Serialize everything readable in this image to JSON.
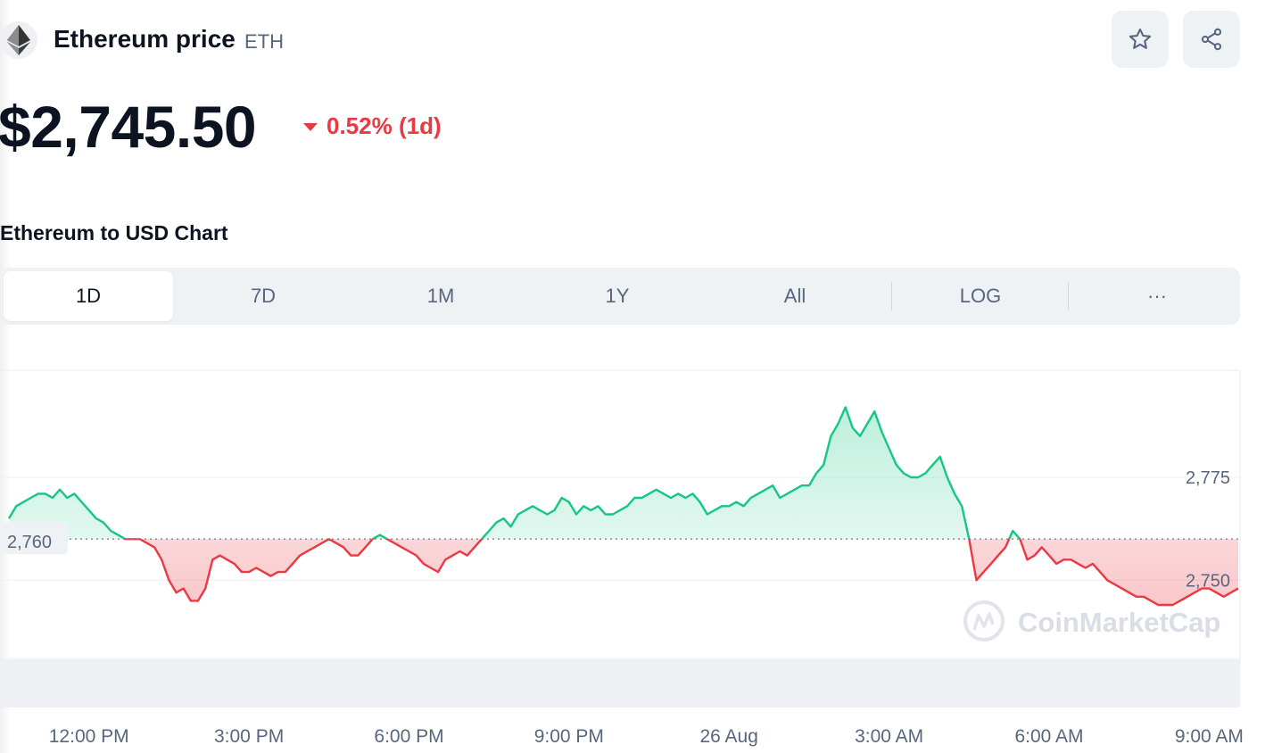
{
  "header": {
    "coin_name": "Ethereum price",
    "symbol": "ETH",
    "logo_icon": "ethereum-icon",
    "star_icon": "star-icon",
    "share_icon": "share-icon"
  },
  "price": {
    "value": "$2,745.50",
    "change": "0.52% (1d)",
    "direction": "down",
    "change_color": "#ea3943"
  },
  "section_title": "Ethereum to USD Chart",
  "tabs": [
    {
      "label": "1D",
      "active": true
    },
    {
      "label": "7D",
      "active": false
    },
    {
      "label": "1M",
      "active": false
    },
    {
      "label": "1Y",
      "active": false
    },
    {
      "label": "All",
      "active": false
    },
    {
      "label": "LOG",
      "active": false
    },
    {
      "label": "···",
      "active": false
    }
  ],
  "chart_data": {
    "type": "area",
    "baseline": 2760,
    "baseline_label": "2,760",
    "y_ticks": [
      {
        "value": 2775,
        "label": "2,775"
      },
      {
        "value": 2750,
        "label": "2,750"
      }
    ],
    "x_ticks": [
      {
        "index": 11,
        "label": "12:00 PM"
      },
      {
        "index": 33,
        "label": "3:00 PM"
      },
      {
        "index": 55,
        "label": "6:00 PM"
      },
      {
        "index": 77,
        "label": "9:00 PM"
      },
      {
        "index": 99,
        "label": "26 Aug"
      },
      {
        "index": 121,
        "label": "3:00 AM"
      },
      {
        "index": 143,
        "label": "6:00 AM"
      },
      {
        "index": 165,
        "label": "9:00 AM"
      }
    ],
    "ylim": [
      2731,
      2801
    ],
    "up_color": "#16c784",
    "down_color": "#ea3943",
    "watermark": "CoinMarketCap",
    "prices": [
      2765,
      2768,
      2769,
      2770,
      2771,
      2771,
      2770,
      2772,
      2770,
      2771,
      2769,
      2767,
      2765,
      2764,
      2762,
      2761,
      2760,
      2760,
      2760,
      2759,
      2758,
      2755,
      2750,
      2747,
      2748,
      2745,
      2745,
      2748,
      2755,
      2756,
      2755,
      2754,
      2752,
      2752,
      2753,
      2752,
      2751,
      2752,
      2752,
      2754,
      2756,
      2757,
      2758,
      2759,
      2760,
      2759,
      2758,
      2756,
      2756,
      2758,
      2760,
      2761,
      2760,
      2759,
      2758,
      2757,
      2756,
      2754,
      2753,
      2752,
      2755,
      2756,
      2757,
      2756,
      2758,
      2760,
      2762,
      2764,
      2765,
      2763,
      2766,
      2767,
      2768,
      2767,
      2766,
      2767,
      2770,
      2769,
      2766,
      2768,
      2767,
      2768,
      2766,
      2766,
      2767,
      2768,
      2770,
      2770,
      2771,
      2772,
      2771,
      2770,
      2771,
      2770,
      2771,
      2769,
      2766,
      2767,
      2768,
      2768,
      2769,
      2768,
      2770,
      2771,
      2772,
      2773,
      2770,
      2771,
      2772,
      2773,
      2773,
      2776,
      2778,
      2785,
      2788,
      2792,
      2787,
      2785,
      2788,
      2791,
      2786,
      2782,
      2778,
      2776,
      2775,
      2775,
      2776,
      2778,
      2780,
      2775,
      2771,
      2768,
      2760,
      2750,
      2752,
      2754,
      2756,
      2758,
      2762,
      2760,
      2755,
      2756,
      2758,
      2756,
      2754,
      2755,
      2755,
      2754,
      2753,
      2754,
      2752,
      2750,
      2749,
      2748,
      2747,
      2746,
      2746,
      2745,
      2744,
      2744,
      2744,
      2745,
      2746,
      2747,
      2748,
      2748,
      2747,
      2746,
      2747,
      2748
    ]
  }
}
